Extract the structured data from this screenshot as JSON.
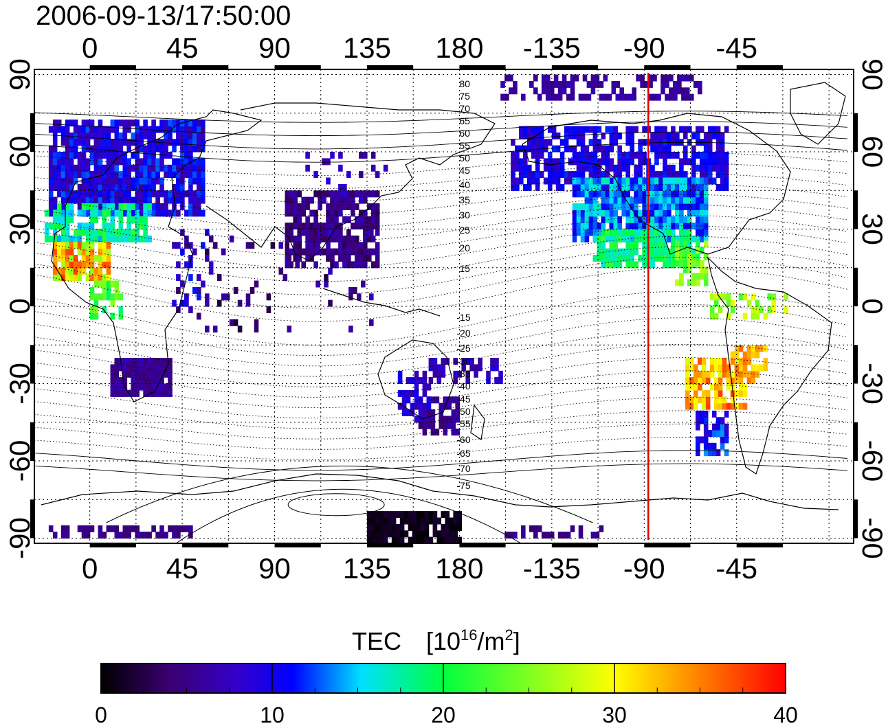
{
  "title": "2006-09-13/17:50:00",
  "map": {
    "x_ticks_top": [
      "0",
      "45",
      "90",
      "135",
      "180",
      "-135",
      "-90",
      "-45"
    ],
    "x_ticks_bottom": [
      "0",
      "45",
      "90",
      "135",
      "180",
      "-135",
      "-90",
      "-45"
    ],
    "y_ticks_left": [
      "90",
      "60",
      "30",
      "0",
      "-30",
      "-60",
      "-90"
    ],
    "y_ticks_right": [
      "90",
      "60",
      "30",
      "0",
      "-30",
      "-60",
      "-90"
    ],
    "lon_range": [
      -27,
      372
    ],
    "lat_range": [
      -92,
      92
    ],
    "marker_longitude": -88,
    "marker_color": "#e00000",
    "contour_labels_north": [
      "80",
      "75",
      "70",
      "65",
      "60",
      "55",
      "50",
      "45",
      "40",
      "35",
      "30",
      "25",
      "20",
      "15"
    ],
    "contour_labels_south": [
      "-15",
      "-20",
      "-25",
      "-30",
      "-35",
      "-40",
      "-45",
      "-50",
      "-55",
      "-60",
      "-65",
      "-70",
      "-75"
    ]
  },
  "colorbar": {
    "title": "TEC",
    "unit_prefix": "[10",
    "unit_exp": "16",
    "unit_mid": "/m",
    "unit_exp2": "2",
    "unit_suffix": "]",
    "tick_labels": [
      "0",
      "10",
      "20",
      "30",
      "40"
    ],
    "range": [
      0,
      40
    ],
    "colors": [
      "#000000",
      "#3a0070",
      "#3300cc",
      "#0000ff",
      "#00e0ff",
      "#00ff40",
      "#ffff00",
      "#ff9900",
      "#ff0000"
    ]
  }
}
